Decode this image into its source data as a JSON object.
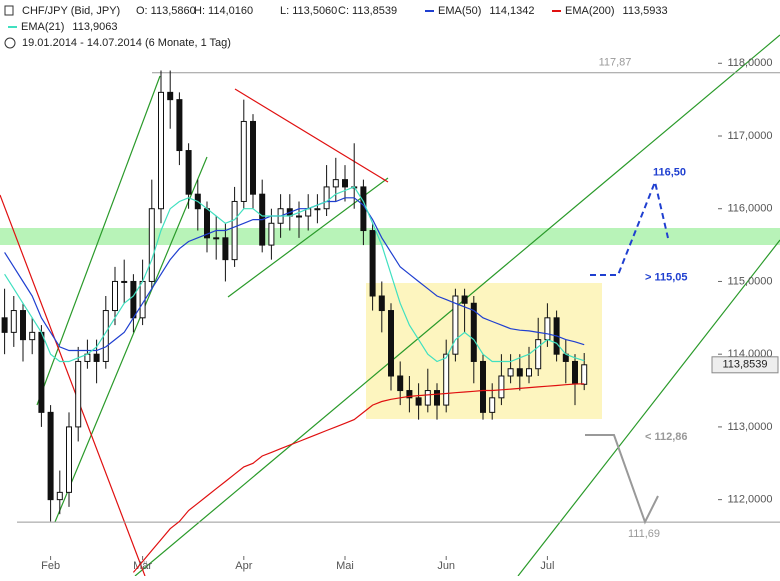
{
  "chart_data": {
    "type": "candlestick",
    "title": "CHF/JPY (Bid, JPY)",
    "ohlc_labels": [
      "O: 113,5860",
      "H: 114,0160",
      "L: 113,5060",
      "C: 113,8539"
    ],
    "subtitle": "19.01.2014 - 14.07.2014 (6 Monate, 1 Tag)",
    "categories": [
      null,
      null,
      null,
      null,
      null,
      "Feb",
      null,
      null,
      null,
      null,
      null,
      null,
      null,
      null,
      null,
      "Mär",
      null,
      null,
      null,
      null,
      null,
      null,
      null,
      null,
      null,
      null,
      "Apr",
      null,
      null,
      null,
      null,
      null,
      null,
      null,
      null,
      null,
      null,
      "Mai",
      null,
      null,
      null,
      null,
      null,
      null,
      null,
      null,
      null,
      null,
      "Jun",
      null,
      null,
      null,
      null,
      null,
      null,
      null,
      null,
      null,
      null,
      "Jul",
      null,
      null,
      null,
      null
    ],
    "open": [
      114.5,
      114.3,
      114.6,
      114.2,
      114.3,
      113.2,
      112.0,
      112.1,
      113.0,
      113.9,
      114.0,
      113.9,
      114.6,
      115.0,
      115.0,
      114.5,
      115.0,
      116.0,
      117.6,
      117.5,
      116.8,
      116.2,
      116.0,
      115.6,
      115.6,
      115.3,
      116.1,
      117.2,
      116.2,
      115.5,
      115.8,
      116.0,
      115.9,
      115.9,
      116.0,
      116.0,
      116.3,
      116.4,
      116.3,
      116.3,
      115.7,
      114.8,
      114.6,
      113.7,
      113.5,
      113.4,
      113.3,
      113.5,
      113.3,
      114.0,
      114.8,
      114.7,
      113.9,
      113.2,
      113.4,
      113.7,
      113.8,
      113.7,
      113.8,
      114.2,
      114.5,
      114.0,
      113.9,
      113.586
    ],
    "high": [
      114.9,
      114.8,
      114.7,
      114.5,
      114.4,
      113.3,
      112.4,
      113.2,
      114.1,
      114.2,
      114.2,
      114.8,
      115.2,
      115.3,
      115.1,
      115.3,
      116.4,
      117.9,
      117.9,
      117.6,
      116.9,
      116.4,
      116.1,
      115.9,
      115.8,
      116.3,
      117.5,
      117.3,
      116.4,
      116.0,
      116.2,
      116.2,
      116.1,
      116.2,
      116.2,
      116.6,
      116.7,
      116.6,
      116.9,
      116.4,
      115.8,
      115.0,
      114.7,
      113.9,
      113.7,
      113.6,
      113.8,
      113.6,
      114.2,
      114.9,
      114.9,
      114.8,
      114.0,
      113.6,
      114.0,
      114.0,
      114.0,
      114.1,
      114.5,
      114.7,
      114.6,
      114.2,
      114.0,
      114.016
    ],
    "low": [
      114.0,
      114.1,
      113.9,
      114.0,
      113.0,
      111.7,
      111.8,
      111.9,
      112.8,
      113.8,
      113.6,
      113.8,
      114.4,
      114.7,
      114.3,
      114.4,
      114.9,
      115.8,
      117.1,
      116.6,
      116.0,
      115.7,
      115.4,
      115.3,
      115.0,
      115.2,
      116.0,
      116.0,
      115.4,
      115.3,
      115.6,
      115.7,
      115.6,
      115.7,
      115.8,
      115.9,
      116.1,
      116.1,
      116.0,
      115.5,
      114.6,
      114.3,
      113.5,
      113.3,
      113.2,
      113.1,
      113.2,
      113.1,
      113.2,
      113.9,
      114.3,
      113.6,
      113.1,
      113.1,
      113.3,
      113.6,
      113.5,
      113.6,
      113.7,
      114.1,
      113.9,
      113.6,
      113.3,
      113.506
    ],
    "close": [
      114.3,
      114.6,
      114.2,
      114.3,
      113.2,
      112.0,
      112.1,
      113.0,
      113.9,
      114.0,
      113.9,
      114.6,
      115.0,
      115.0,
      114.5,
      115.0,
      116.0,
      117.6,
      117.5,
      116.8,
      116.2,
      116.0,
      115.6,
      115.6,
      115.3,
      116.1,
      117.2,
      116.2,
      115.5,
      115.8,
      116.0,
      115.9,
      115.9,
      116.0,
      116.0,
      116.3,
      116.4,
      116.3,
      116.3,
      115.7,
      114.8,
      114.6,
      113.7,
      113.5,
      113.4,
      113.3,
      113.5,
      113.3,
      114.0,
      114.8,
      114.7,
      113.9,
      113.2,
      113.4,
      113.7,
      113.8,
      113.7,
      113.8,
      114.2,
      114.5,
      114.0,
      113.9,
      113.6,
      113.8539
    ],
    "series": [
      {
        "name": "EMA(50)",
        "color": "#1f3fd0",
        "last_value_label": "114,1342",
        "values": [
          115.4,
          115.2,
          115.0,
          114.8,
          114.5,
          114.3,
          114.1,
          114.05,
          114.05,
          114.05,
          114.05,
          114.1,
          114.2,
          114.3,
          114.5,
          114.7,
          114.9,
          115.1,
          115.3,
          115.45,
          115.55,
          115.6,
          115.65,
          115.7,
          115.7,
          115.75,
          115.8,
          115.85,
          115.85,
          115.9,
          115.9,
          115.95,
          116.0,
          116.0,
          116.05,
          116.1,
          116.1,
          116.15,
          116.15,
          116.05,
          115.85,
          115.6,
          115.4,
          115.2,
          115.1,
          115.0,
          114.9,
          114.8,
          114.75,
          114.7,
          114.65,
          114.6,
          114.5,
          114.45,
          114.4,
          114.35,
          114.33,
          114.32,
          114.3,
          114.28,
          114.25,
          114.2,
          114.17,
          114.13
        ]
      },
      {
        "name": "EMA(200)",
        "color": "#e01010",
        "last_value_label": "113,5933",
        "values": [
          null,
          null,
          null,
          null,
          null,
          null,
          null,
          null,
          null,
          null,
          null,
          null,
          null,
          null,
          111.0,
          111.15,
          111.3,
          111.45,
          111.6,
          111.7,
          111.85,
          111.95,
          112.05,
          112.15,
          112.25,
          112.35,
          112.45,
          112.5,
          112.6,
          112.65,
          112.7,
          112.75,
          112.8,
          112.85,
          112.9,
          112.95,
          113.0,
          113.05,
          113.1,
          113.2,
          113.3,
          113.35,
          113.38,
          113.4,
          113.42,
          113.43,
          113.44,
          113.45,
          113.46,
          113.47,
          113.48,
          113.49,
          113.5,
          113.5,
          113.51,
          113.52,
          113.53,
          113.54,
          113.55,
          113.56,
          113.57,
          113.58,
          113.59,
          113.5933
        ]
      },
      {
        "name": "EMA(21)",
        "color": "#40e0c0",
        "last_value_label": "113,9063",
        "values": [
          115.1,
          114.9,
          114.7,
          114.5,
          114.3,
          114.0,
          113.9,
          113.9,
          113.95,
          114.0,
          114.1,
          114.3,
          114.5,
          114.7,
          114.8,
          115.0,
          115.3,
          115.7,
          116.0,
          116.1,
          116.15,
          116.1,
          116.0,
          115.9,
          115.8,
          115.85,
          116.0,
          116.0,
          115.9,
          115.9,
          115.9,
          115.9,
          115.95,
          116.0,
          116.05,
          116.1,
          116.2,
          116.25,
          116.3,
          116.1,
          115.8,
          115.5,
          115.1,
          114.7,
          114.4,
          114.2,
          114.0,
          113.9,
          113.95,
          114.2,
          114.3,
          114.2,
          114.0,
          113.9,
          113.9,
          113.9,
          113.95,
          114.0,
          114.1,
          114.2,
          114.15,
          114.0,
          113.95,
          113.91
        ]
      }
    ],
    "ylim": [
      110.95,
      118.32
    ],
    "yticks": [
      {
        "value": 112,
        "label": "112,0000"
      },
      {
        "value": 113,
        "label": "113,0000"
      },
      {
        "value": 114,
        "label": "114,0000"
      },
      {
        "value": 115,
        "label": "115,0000"
      },
      {
        "value": 116,
        "label": "116,0000"
      },
      {
        "value": 117,
        "label": "117,0000"
      },
      {
        "value": 118,
        "label": "118,0000"
      }
    ],
    "last_price": {
      "value": 113.8539,
      "label": "113,8539"
    },
    "levels": [
      {
        "value": 117.87,
        "label": "117,87"
      },
      {
        "value": 111.69,
        "label": "111,69"
      }
    ],
    "targets": [
      {
        "value": 116.5,
        "label": "116,50",
        "color": "#1f3fd0"
      },
      {
        "value": 115.05,
        "label": "> 115,05",
        "color": "#1f3fd0"
      },
      {
        "value": 112.86,
        "label": "< 112,86",
        "color": "#999999"
      }
    ]
  }
}
